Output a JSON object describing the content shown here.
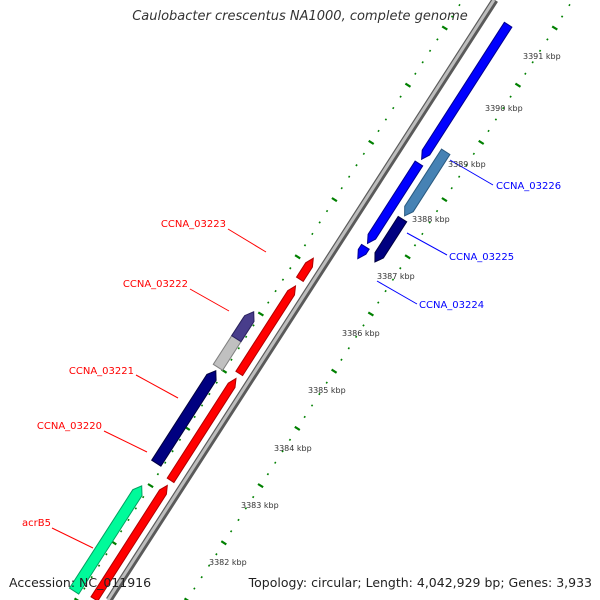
{
  "title": "Caulobacter crescentus NA1000, complete genome",
  "footer": {
    "accession": "Accession: NC_011916",
    "summary": "Topology: circular; Length: 4,042,929 bp; Genes: 3,933"
  },
  "tick_labels": [
    "3382 kbp",
    "3383 kbp",
    "3384 kbp",
    "3385 kbp",
    "3386 kbp",
    "3387 kbp",
    "3388 kbp",
    "3389 kbp",
    "3390 kbp",
    "3391 kbp"
  ],
  "gene_labels": {
    "reverse": [
      "CCNA_03223",
      "CCNA_03222",
      "CCNA_03221",
      "CCNA_03220",
      "acrB5"
    ],
    "forward": [
      "CCNA_03226",
      "CCNA_03225",
      "CCNA_03224"
    ]
  },
  "colors": {
    "red": "#ff0000",
    "navy": "#000080",
    "blue": "#0000ff",
    "steelblue": "#4682b4",
    "mediumspringgreen": "#00fa9a",
    "silver": "#c0c0c0",
    "darkslateblue": "#483d8b",
    "tick_green": "#008000",
    "backbone": "#808080"
  }
}
